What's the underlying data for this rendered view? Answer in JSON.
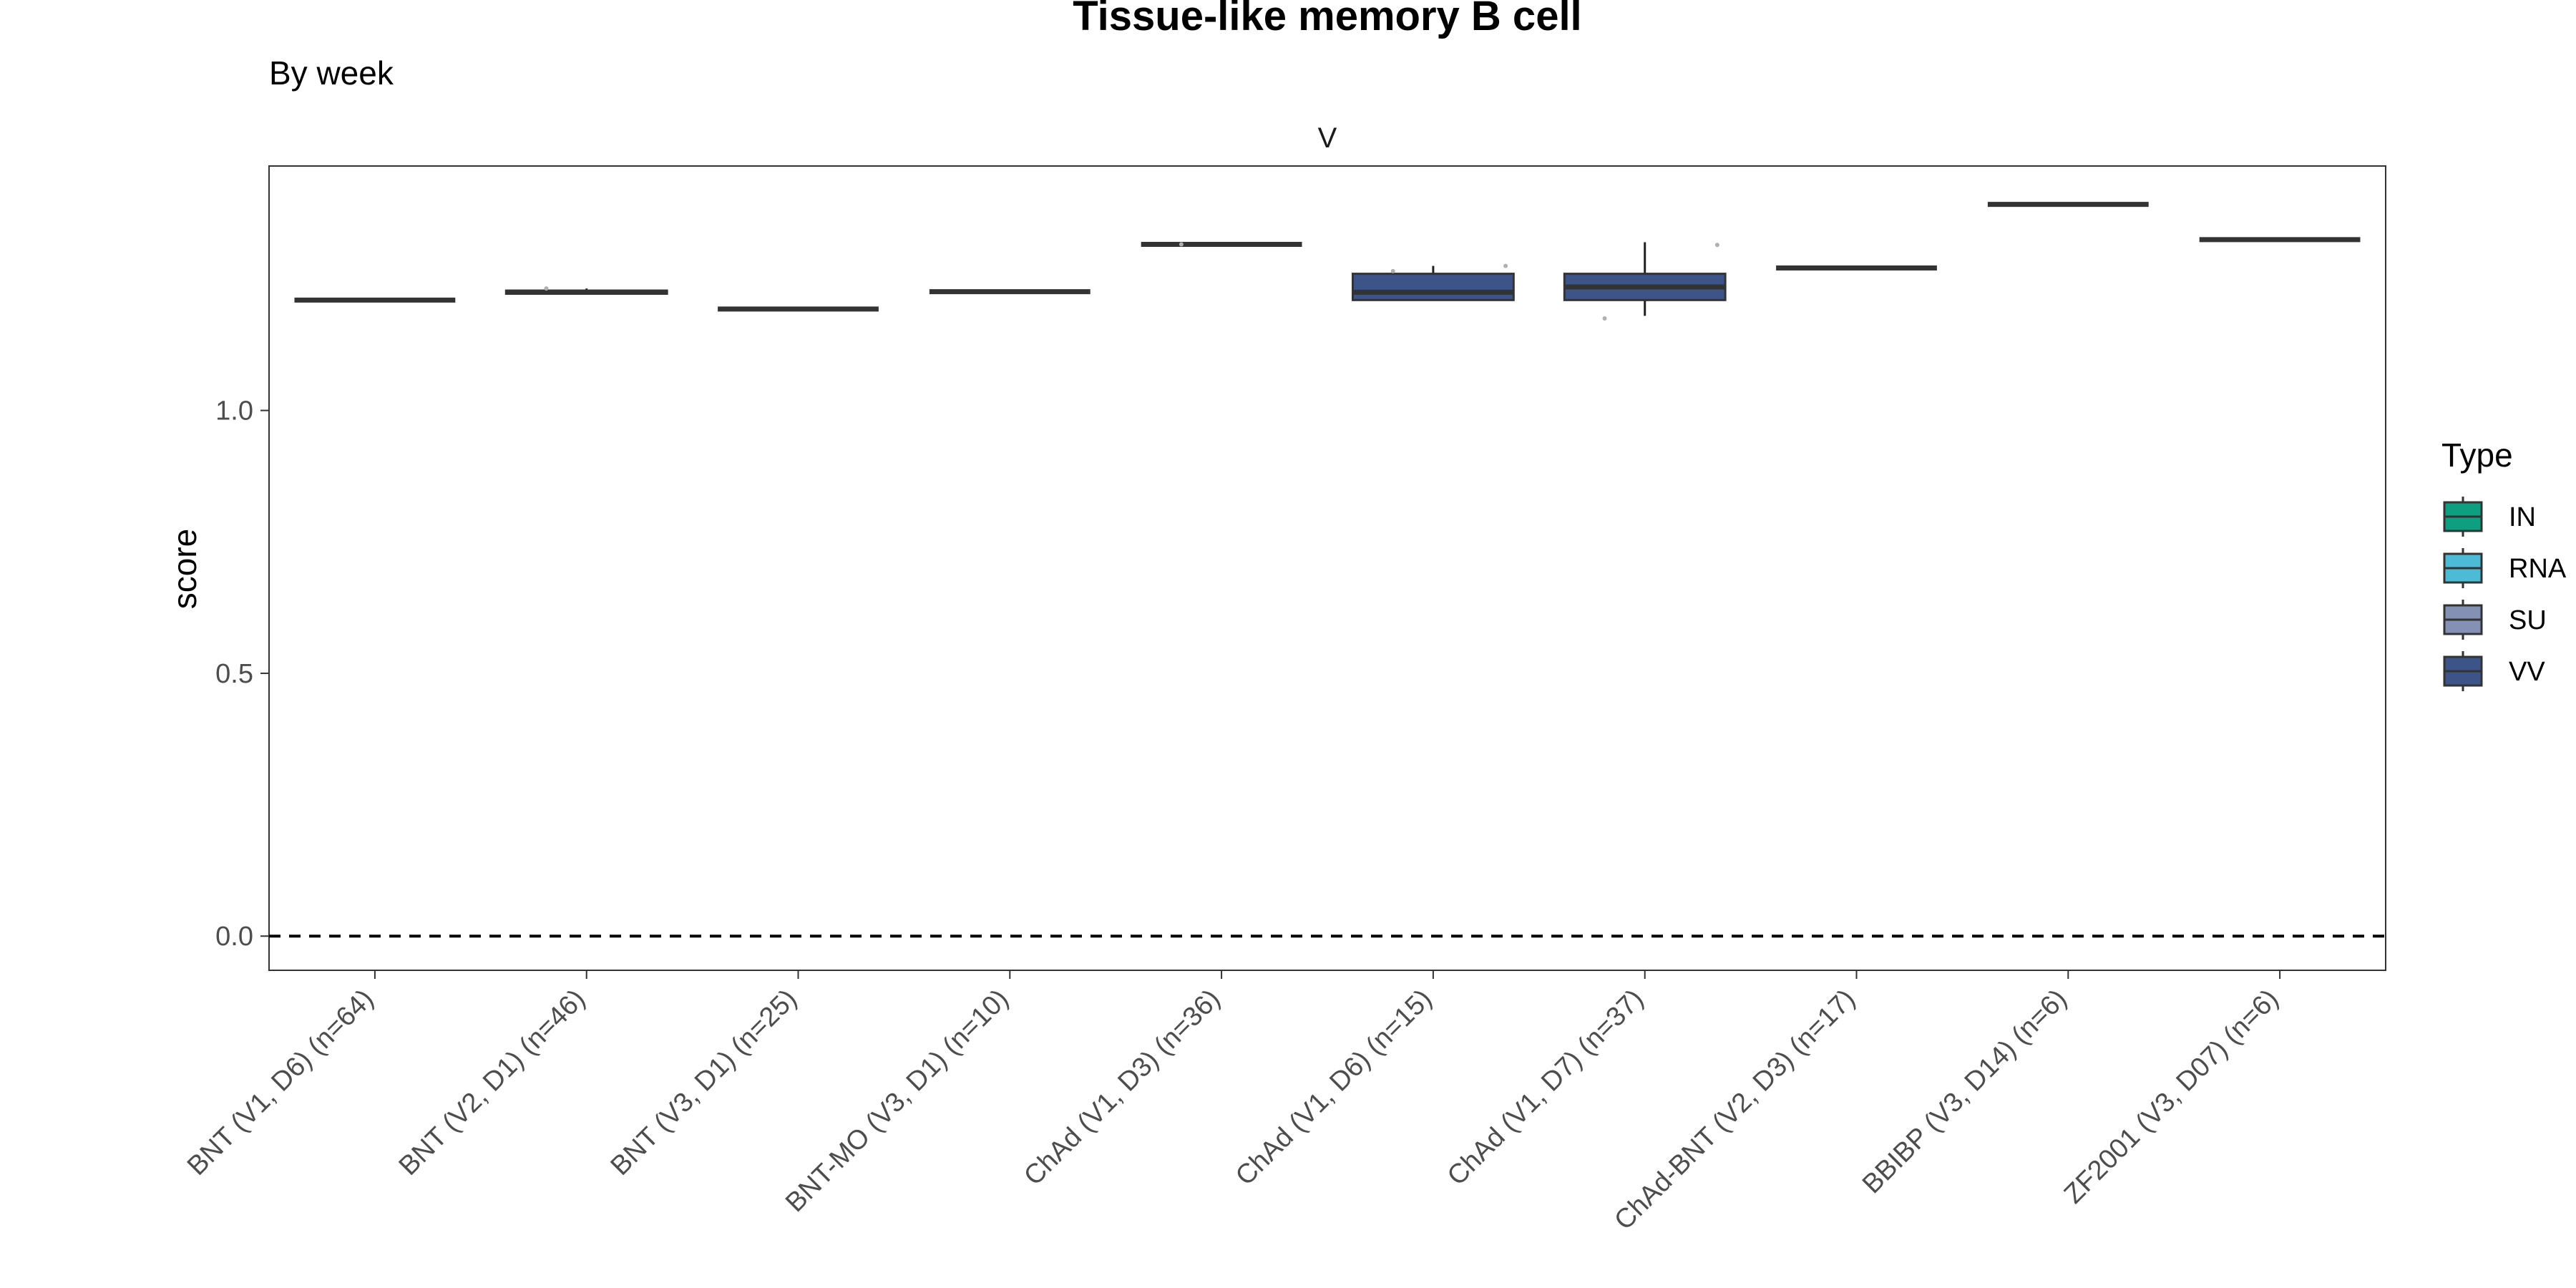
{
  "chart_data": {
    "type": "box",
    "title": "Tissue-like memory B cell",
    "subtitle": "By week",
    "facet_label": "V",
    "ylabel": "score",
    "xlabel": "",
    "ylim": [
      -0.065,
      1.465
    ],
    "yticks": [
      0.0,
      0.5,
      1.0
    ],
    "ytick_labels": [
      "0.0",
      "0.5",
      "1.0"
    ],
    "reference_line": {
      "y": 0.0,
      "style": "dashed"
    },
    "grid": false,
    "legend": {
      "title": "Type",
      "position": "right",
      "entries": [
        {
          "label": "IN",
          "color": "#0E9E80"
        },
        {
          "label": "RNA",
          "color": "#4DBBD5"
        },
        {
          "label": "SU",
          "color": "#8491B4"
        },
        {
          "label": "VV",
          "color": "#3C5488"
        }
      ]
    },
    "categories": [
      "BNT (V1, D6) (n=64)",
      "BNT (V2, D1) (n=46)",
      "BNT (V3, D1) (n=25)",
      "BNT-MO (V3, D1) (n=10)",
      "ChAd (V1, D3) (n=36)",
      "ChAd (V1, D6) (n=15)",
      "ChAd (V1, D7) (n=37)",
      "ChAd-BNT (V2, D3) (n=17)",
      "BBIBP (V3, D14) (n=6)",
      "ZF2001 (V3, D07) (n=6)"
    ],
    "boxes": [
      {
        "type": "RNA",
        "min": 1.21,
        "q1": 1.21,
        "median": 1.21,
        "q3": 1.21,
        "max": 1.21,
        "outliers": []
      },
      {
        "type": "RNA",
        "min": 1.222,
        "q1": 1.222,
        "median": 1.225,
        "q3": 1.228,
        "max": 1.232,
        "outliers": [
          1.232
        ]
      },
      {
        "type": "RNA",
        "min": 1.193,
        "q1": 1.193,
        "median": 1.193,
        "q3": 1.193,
        "max": 1.193,
        "outliers": []
      },
      {
        "type": "RNA",
        "min": 1.226,
        "q1": 1.226,
        "median": 1.226,
        "q3": 1.226,
        "max": 1.226,
        "outliers": []
      },
      {
        "type": "VV",
        "min": 1.316,
        "q1": 1.316,
        "median": 1.316,
        "q3": 1.316,
        "max": 1.316,
        "outliers": [
          1.316
        ]
      },
      {
        "type": "VV",
        "min": 1.21,
        "q1": 1.21,
        "median": 1.225,
        "q3": 1.26,
        "max": 1.275,
        "outliers": [
          1.265,
          1.275
        ]
      },
      {
        "type": "VV",
        "min": 1.18,
        "q1": 1.21,
        "median": 1.235,
        "q3": 1.26,
        "max": 1.32,
        "outliers": [
          1.175,
          1.315
        ]
      },
      {
        "type": "RNA",
        "min": 1.271,
        "q1": 1.271,
        "median": 1.271,
        "q3": 1.271,
        "max": 1.271,
        "outliers": []
      },
      {
        "type": "IN",
        "min": 1.392,
        "q1": 1.392,
        "median": 1.392,
        "q3": 1.392,
        "max": 1.392,
        "outliers": []
      },
      {
        "type": "SU",
        "min": 1.325,
        "q1": 1.325,
        "median": 1.325,
        "q3": 1.325,
        "max": 1.325,
        "outliers": []
      }
    ]
  }
}
